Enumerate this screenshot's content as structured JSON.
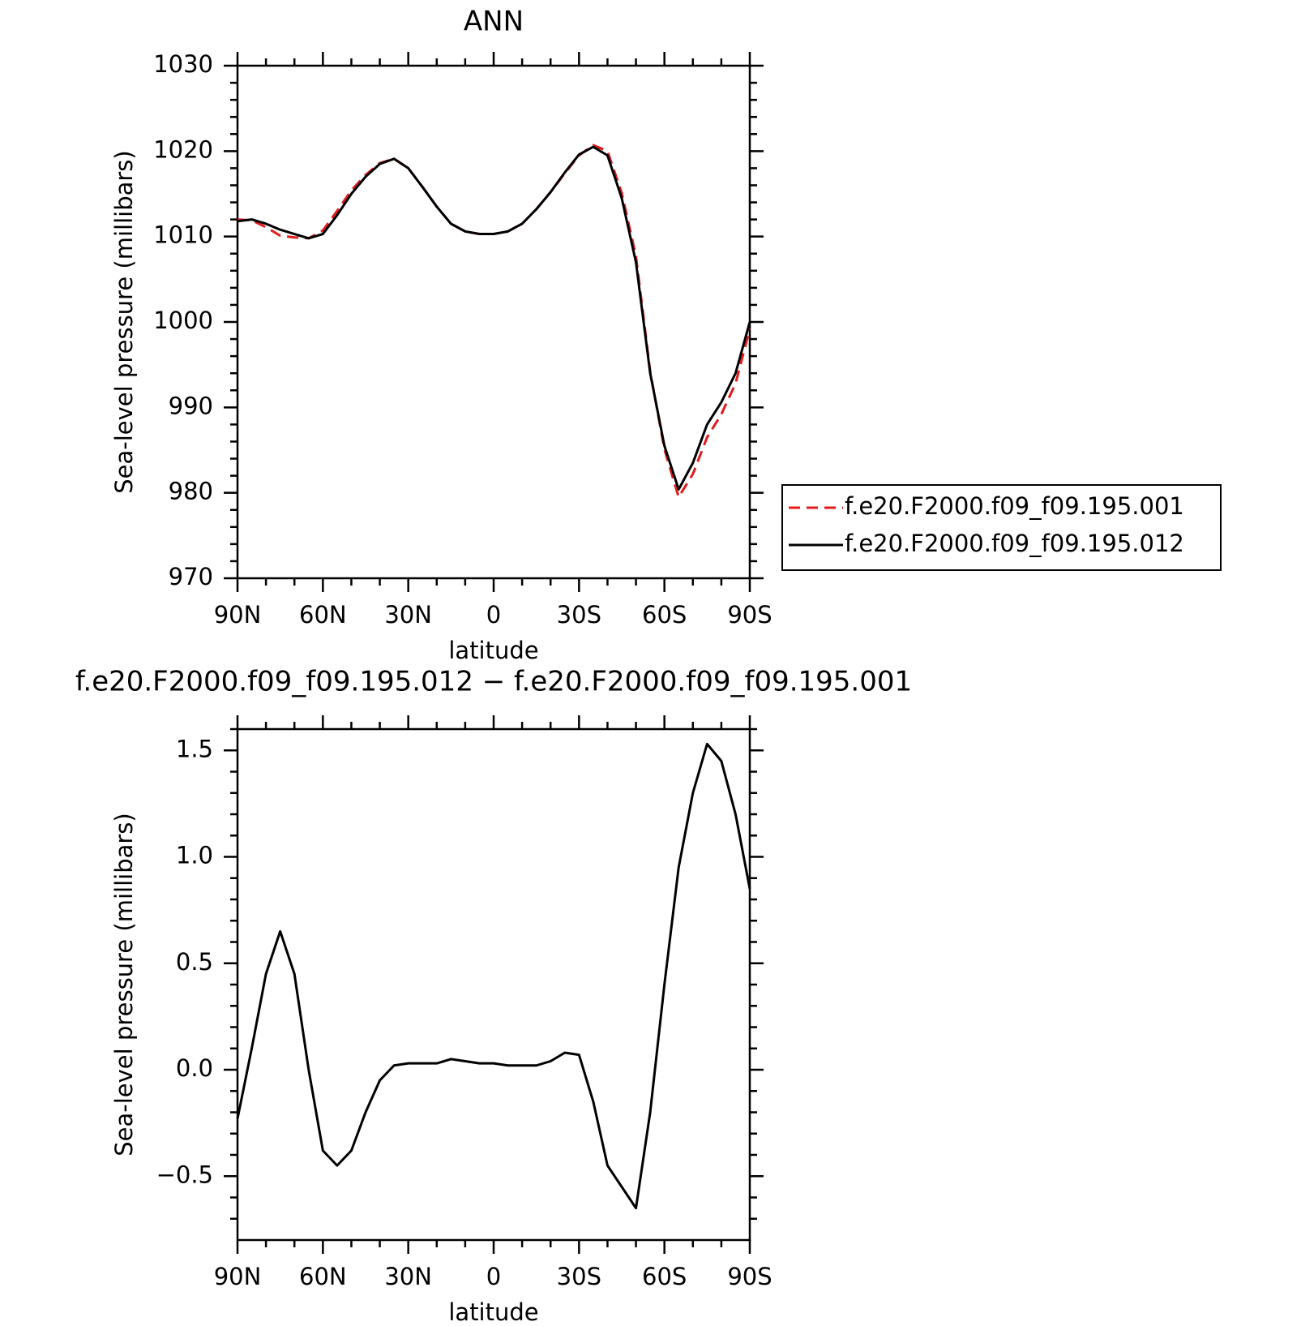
{
  "chart_data": [
    {
      "type": "line",
      "title": "ANN",
      "xlabel": "latitude",
      "ylabel": "Sea-level pressure (millibars)",
      "x": [
        90,
        85,
        80,
        75,
        70,
        65,
        60,
        55,
        50,
        45,
        40,
        35,
        30,
        25,
        20,
        15,
        10,
        5,
        0,
        -5,
        -10,
        -15,
        -20,
        -25,
        -30,
        -35,
        -40,
        -45,
        -50,
        -55,
        -60,
        -65,
        -70,
        -75,
        -80,
        -85,
        -90
      ],
      "series": [
        {
          "name": "f.e20.F2000.f09_f09.195.001",
          "color": "#e41a1c",
          "linestyle": "dashed",
          "values": [
            1012.0,
            1011.9,
            1011.1,
            1010.1,
            1009.9,
            1009.8,
            1010.7,
            1013.0,
            1015.4,
            1017.2,
            1018.6,
            1019.1,
            1018.0,
            1015.8,
            1013.5,
            1011.5,
            1010.6,
            1010.3,
            1010.3,
            1010.6,
            1011.5,
            1013.2,
            1015.2,
            1017.4,
            1019.5,
            1020.7,
            1020.0,
            1015.1,
            1007.7,
            994.2,
            985.1,
            979.5,
            982.2,
            986.5,
            989.2,
            992.8,
            999.2
          ]
        },
        {
          "name": "f.e20.F2000.f09_f09.195.012",
          "color": "#000000",
          "linestyle": "solid",
          "values": [
            1011.8,
            1012.0,
            1011.5,
            1010.8,
            1010.3,
            1009.8,
            1010.3,
            1012.5,
            1015.0,
            1017.0,
            1018.5,
            1019.1,
            1018.0,
            1015.8,
            1013.5,
            1011.5,
            1010.6,
            1010.3,
            1010.3,
            1010.6,
            1011.5,
            1013.2,
            1015.2,
            1017.5,
            1019.6,
            1020.5,
            1019.5,
            1014.5,
            1007.0,
            994.0,
            985.5,
            980.4,
            983.5,
            988.0,
            990.6,
            994.0,
            1000.0
          ]
        }
      ],
      "xlim": [
        90,
        -90
      ],
      "xticks": [
        {
          "value": 90,
          "label": "90N"
        },
        {
          "value": 60,
          "label": "60N"
        },
        {
          "value": 30,
          "label": "30N"
        },
        0,
        {
          "value": -30,
          "label": "30S"
        },
        {
          "value": -60,
          "label": "60S"
        },
        {
          "value": -90,
          "label": "90S"
        }
      ],
      "xminorticks": [
        80,
        70,
        50,
        40,
        20,
        10,
        -10,
        -20,
        -40,
        -50,
        -70,
        -80
      ],
      "ylim": [
        970,
        1030
      ],
      "yticks": [
        970,
        980,
        990,
        1000,
        1010,
        1020,
        1030
      ],
      "yminorticks": [
        972,
        974,
        976,
        978,
        982,
        984,
        986,
        988,
        992,
        994,
        996,
        998,
        1002,
        1004,
        1006,
        1008,
        1012,
        1014,
        1016,
        1018,
        1022,
        1024,
        1026,
        1028
      ],
      "legend": "right"
    },
    {
      "type": "line",
      "title": "f.e20.F2000.f09_f09.195.012 − f.e20.F2000.f09_f09.195.001",
      "xlabel": "latitude",
      "ylabel": "Sea-level pressure (millibars)",
      "x": [
        90,
        85,
        80,
        75,
        70,
        65,
        60,
        55,
        50,
        45,
        40,
        35,
        30,
        25,
        20,
        15,
        10,
        5,
        0,
        -5,
        -10,
        -15,
        -20,
        -25,
        -30,
        -35,
        -40,
        -45,
        -50,
        -55,
        -60,
        -65,
        -70,
        -75,
        -80,
        -85,
        -90
      ],
      "color": "#000000",
      "linestyle": "solid",
      "values": [
        -0.23,
        0.1,
        0.45,
        0.65,
        0.45,
        0.0,
        -0.38,
        -0.45,
        -0.38,
        -0.2,
        -0.05,
        0.02,
        0.03,
        0.03,
        0.03,
        0.05,
        0.04,
        0.03,
        0.03,
        0.02,
        0.02,
        0.02,
        0.04,
        0.08,
        0.07,
        -0.15,
        -0.45,
        -0.55,
        -0.65,
        -0.2,
        0.4,
        0.95,
        1.3,
        1.53,
        1.45,
        1.2,
        0.85
      ],
      "xlim": [
        90,
        -90
      ],
      "xticks": [
        {
          "value": 90,
          "label": "90N"
        },
        {
          "value": 60,
          "label": "60N"
        },
        {
          "value": 30,
          "label": "30N"
        },
        0,
        {
          "value": -30,
          "label": "30S"
        },
        {
          "value": -60,
          "label": "60S"
        },
        {
          "value": -90,
          "label": "90S"
        }
      ],
      "xminorticks": [
        80,
        70,
        50,
        40,
        20,
        10,
        -10,
        -20,
        -40,
        -50,
        -70,
        -80
      ],
      "ylim": [
        -0.8,
        1.6
      ],
      "yticks": [
        {
          "value": -0.5,
          "label": "−0.5"
        },
        {
          "value": 0,
          "label": "0.0"
        },
        0.5,
        {
          "value": 1,
          "label": "1.0"
        },
        1.5
      ],
      "yminorticks": [
        -0.7,
        -0.6,
        -0.4,
        -0.3,
        -0.2,
        -0.1,
        0.1,
        0.2,
        0.3,
        0.4,
        0.6,
        0.7,
        0.8,
        0.9,
        1.1,
        1.2,
        1.3,
        1.4,
        1.6
      ]
    }
  ]
}
